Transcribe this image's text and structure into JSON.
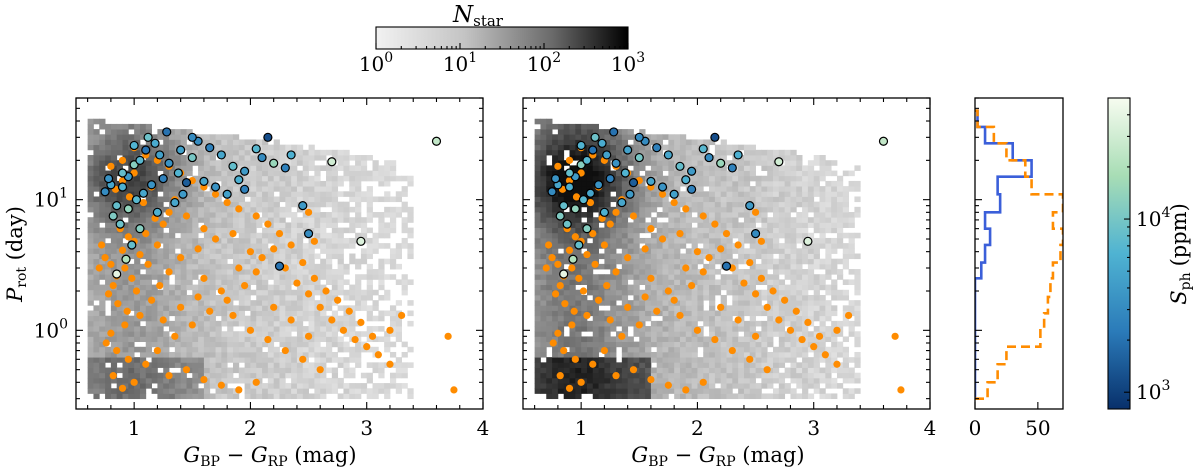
{
  "colorbar_top": {
    "label_main": "N",
    "label_sub": "star",
    "ticks": [
      {
        "base": "10",
        "exp": "0",
        "value": 1
      },
      {
        "base": "10",
        "exp": "1",
        "value": 10
      },
      {
        "base": "10",
        "exp": "2",
        "value": 100
      },
      {
        "base": "10",
        "exp": "3",
        "value": 1000
      }
    ],
    "scale": "log",
    "colormap": "white-to-black (gray)"
  },
  "colorbar_right": {
    "label_main": "S",
    "label_sub": "ph",
    "label_unit": "(ppm)",
    "ticks": [
      {
        "base": "10",
        "exp": "3",
        "value": 1000
      },
      {
        "base": "10",
        "exp": "4",
        "value": 10000
      }
    ],
    "range": [
      800,
      50000
    ],
    "scale": "log",
    "colormap": "dark blue to pale green (GnBu)"
  },
  "panel_left": {
    "xlabel_main": "G",
    "xlabel_sub1": "BP",
    "xlabel_minus": " − ",
    "xlabel_sub2": "RP",
    "xlabel_unit": " (mag)",
    "ylabel_main": "P",
    "ylabel_sub": "rot",
    "ylabel_unit": " (day)",
    "xticks": [
      "1",
      "2",
      "3",
      "4"
    ],
    "yticks": [
      {
        "base": "10",
        "exp": "0",
        "value": 1
      },
      {
        "base": "10",
        "exp": "1",
        "value": 10
      }
    ]
  },
  "panel_middle": {
    "xlabel_main": "G",
    "xlabel_sub1": "BP",
    "xlabel_minus": " − ",
    "xlabel_sub2": "RP",
    "xlabel_unit": " (mag)",
    "xticks": [
      "1",
      "2",
      "3",
      "4"
    ]
  },
  "panel_hist": {
    "xticks": [
      "0",
      "50"
    ]
  },
  "colors": {
    "orange": "#ff8c00",
    "blue_line": "#3b5fd9",
    "orange_line": "#ff8c00",
    "edge": "#000000"
  },
  "chart_data": [
    {
      "type": "scatter",
      "panel": "left",
      "xlabel": "G_BP − G_RP (mag)",
      "ylabel": "P_rot (day)",
      "xlim": [
        0.5,
        4.0
      ],
      "ylim": [
        0.25,
        60
      ],
      "yscale": "log",
      "background": "2D density histogram of N_star (gray, log color scale 1 to 1000)",
      "series": [
        {
          "points": [
            [
              0.8,
              3.2
            ],
            [
              0.85,
              2.6
            ],
            [
              0.9,
              4.1
            ],
            [
              0.75,
              3.6
            ],
            [
              0.95,
              5.2
            ],
            [
              1.0,
              4.8
            ],
            [
              0.88,
              6.0
            ],
            [
              0.82,
              2.2
            ],
            [
              0.78,
              1.9
            ],
            [
              0.92,
              3.0
            ],
            [
              1.05,
              3.8
            ],
            [
              1.1,
              5.5
            ],
            [
              0.98,
              2.5
            ],
            [
              0.86,
              1.6
            ],
            [
              0.94,
              1.4
            ],
            [
              1.02,
              2.0
            ],
            [
              1.12,
              3.2
            ],
            [
              1.2,
              4.5
            ],
            [
              1.25,
              6.5
            ],
            [
              1.3,
              8.0
            ],
            [
              1.18,
              7.2
            ],
            [
              1.08,
              9.5
            ],
            [
              0.96,
              10.5
            ],
            [
              0.84,
              12.0
            ],
            [
              0.9,
              14.0
            ],
            [
              1.0,
              16.0
            ],
            [
              1.15,
              12.5
            ],
            [
              1.35,
              10.0
            ],
            [
              1.45,
              7.5
            ],
            [
              1.6,
              6.0
            ],
            [
              1.7,
              5.0
            ],
            [
              1.55,
              4.2
            ],
            [
              1.4,
              3.6
            ],
            [
              1.3,
              2.8
            ],
            [
              1.22,
              2.2
            ],
            [
              1.05,
              1.3
            ],
            [
              0.92,
              1.1
            ],
            [
              0.8,
              0.95
            ],
            [
              0.76,
              0.8
            ],
            [
              0.85,
              0.7
            ],
            [
              0.95,
              0.6
            ],
            [
              0.82,
              0.45
            ],
            [
              0.9,
              0.36
            ],
            [
              1.0,
              0.4
            ],
            [
              1.1,
              0.55
            ],
            [
              1.2,
              0.7
            ],
            [
              1.35,
              0.9
            ],
            [
              1.5,
              1.1
            ],
            [
              1.65,
              1.4
            ],
            [
              1.8,
              1.7
            ],
            [
              1.95,
              2.2
            ],
            [
              2.05,
              2.8
            ],
            [
              2.1,
              3.6
            ],
            [
              2.2,
              4.2
            ],
            [
              2.3,
              3.0
            ],
            [
              2.4,
              2.3
            ],
            [
              2.5,
              1.9
            ],
            [
              2.6,
              1.5
            ],
            [
              2.7,
              1.2
            ],
            [
              2.8,
              1.0
            ],
            [
              2.9,
              0.85
            ],
            [
              3.0,
              0.75
            ],
            [
              3.1,
              0.65
            ],
            [
              3.2,
              0.55
            ],
            [
              3.3,
              1.3
            ],
            [
              3.2,
              1.0
            ],
            [
              3.05,
              0.9
            ],
            [
              2.95,
              1.15
            ],
            [
              2.85,
              1.4
            ],
            [
              2.75,
              1.7
            ],
            [
              2.65,
              2.0
            ],
            [
              2.55,
              2.5
            ],
            [
              2.45,
              3.3
            ],
            [
              2.35,
              4.5
            ],
            [
              2.25,
              5.5
            ],
            [
              2.15,
              6.5
            ],
            [
              2.05,
              7.5
            ],
            [
              1.9,
              8.5
            ],
            [
              1.8,
              9.5
            ],
            [
              1.7,
              11.0
            ],
            [
              1.6,
              12.5
            ],
            [
              1.5,
              14.0
            ],
            [
              1.4,
              16.0
            ],
            [
              1.3,
              18.0
            ],
            [
              1.2,
              20.0
            ],
            [
              1.1,
              22.0
            ],
            [
              1.0,
              25.0
            ],
            [
              0.9,
              20.0
            ],
            [
              0.8,
              18.0
            ],
            [
              1.6,
              2.5
            ],
            [
              1.75,
              2.0
            ],
            [
              1.85,
              1.3
            ],
            [
              2.0,
              1.0
            ],
            [
              2.15,
              0.85
            ],
            [
              2.3,
              0.7
            ],
            [
              2.45,
              0.6
            ],
            [
              2.6,
              0.5
            ],
            [
              1.45,
              0.5
            ],
            [
              1.3,
              0.45
            ],
            [
              1.6,
              0.42
            ],
            [
              1.75,
              0.38
            ],
            [
              1.9,
              0.35
            ],
            [
              2.05,
              0.4
            ],
            [
              2.5,
              0.9
            ],
            [
              2.35,
              1.2
            ],
            [
              2.2,
              1.5
            ],
            [
              3.7,
              0.9
            ],
            [
              3.75,
              0.35
            ],
            [
              2.5,
              8.0
            ],
            [
              2.55,
              4.8
            ],
            [
              2.0,
              4.0
            ],
            [
              1.9,
              3.0
            ],
            [
              1.85,
              5.5
            ],
            [
              0.72,
              4.5
            ],
            [
              0.7,
              3.0
            ],
            [
              1.15,
              1.7
            ],
            [
              1.25,
              1.2
            ],
            [
              1.4,
              1.5
            ],
            [
              1.55,
              1.8
            ]
          ],
          "marker": "filled circle",
          "color": "orange"
        },
        {
          "points": [
            [
              0.75,
              11.5
            ],
            [
              0.8,
              13.0
            ],
            [
              0.85,
              9.0
            ],
            [
              0.9,
              12.5
            ],
            [
              0.95,
              15.0
            ],
            [
              1.0,
              18.5
            ],
            [
              1.05,
              20.0
            ],
            [
              1.1,
              24.0
            ],
            [
              1.12,
              30.0
            ],
            [
              1.18,
              27.0
            ],
            [
              1.22,
              22.0
            ],
            [
              1.3,
              19.0
            ],
            [
              1.38,
              16.0
            ],
            [
              1.45,
              13.5
            ],
            [
              1.5,
              21.0
            ],
            [
              1.55,
              28.0
            ],
            [
              1.65,
              25.0
            ],
            [
              1.75,
              22.0
            ],
            [
              1.85,
              18.0
            ],
            [
              1.95,
              16.5
            ],
            [
              2.05,
              24.5
            ],
            [
              2.1,
              21.0
            ],
            [
              2.15,
              30.0
            ],
            [
              2.2,
              19.0
            ],
            [
              2.3,
              17.5
            ],
            [
              2.35,
              22.0
            ],
            [
              1.6,
              13.8
            ],
            [
              1.7,
              12.5
            ],
            [
              1.8,
              11.0
            ],
            [
              1.9,
              14.2
            ],
            [
              0.82,
              7.5
            ],
            [
              0.88,
              6.5
            ],
            [
              0.95,
              8.5
            ],
            [
              1.02,
              10.0
            ],
            [
              1.08,
              11.2
            ],
            [
              1.15,
              13.0
            ],
            [
              1.25,
              14.5
            ],
            [
              0.93,
              3.5
            ],
            [
              0.85,
              2.7
            ],
            [
              0.98,
              4.5
            ],
            [
              2.45,
              9.0
            ],
            [
              2.5,
              5.5
            ],
            [
              2.7,
              19.5
            ],
            [
              2.95,
              4.8
            ],
            [
              3.6,
              28.0
            ],
            [
              1.95,
              12.0
            ],
            [
              2.25,
              3.1
            ],
            [
              1.2,
              8.0
            ],
            [
              1.35,
              9.5
            ],
            [
              1.42,
              11.0
            ],
            [
              1.05,
              6.0
            ],
            [
              0.9,
              16.0
            ],
            [
              0.78,
              14.5
            ],
            [
              1.0,
              26.0
            ],
            [
              1.28,
              33.0
            ],
            [
              1.4,
              24.0
            ],
            [
              1.5,
              30.0
            ]
          ],
          "marker": "circle with black edge",
          "color": "mapped by S_ph (ppm)",
          "S_ph": [
            3000,
            5000,
            8000,
            6000,
            4000,
            12000,
            7000,
            2000,
            9000,
            5500,
            4500,
            3500,
            6500,
            1500,
            10000,
            3000,
            2500,
            5000,
            8000,
            4000,
            7000,
            3000,
            1200,
            15000,
            2500,
            6000,
            5000,
            3500,
            4500,
            6000,
            11000,
            9000,
            14000,
            7000,
            5000,
            3500,
            2500,
            20000,
            40000,
            8000,
            4000,
            3000,
            30000,
            35000,
            25000,
            2500,
            2000,
            6000,
            5000,
            4000,
            12000,
            8000,
            3500,
            6500,
            2000,
            4500,
            3000
          ]
        }
      ]
    },
    {
      "type": "scatter",
      "panel": "middle",
      "xlabel": "G_BP − G_RP (mag)",
      "ylabel": "",
      "xlim": [
        0.5,
        4.0
      ],
      "ylim": [
        0.25,
        60
      ],
      "yscale": "log",
      "background": "2D density histogram of N_star (gray, log color scale 1 to 1000), denser than left panel",
      "series_note": "same orange and S_ph-colored points as left panel"
    },
    {
      "type": "histogram",
      "panel": "right",
      "orientation": "horizontal (counts along x, P_rot along y)",
      "xlim": [
        0,
        70
      ],
      "ylim": [
        0.25,
        60
      ],
      "yscale": "log",
      "bin_edges": [
        0.3,
        0.4,
        0.55,
        0.75,
        1.0,
        1.35,
        1.8,
        2.5,
        3.3,
        4.5,
        6.0,
        8.0,
        11.0,
        15.0,
        20.0,
        27.0,
        36.0,
        48.0
      ],
      "series": [
        {
          "name": "",
          "color": "blue",
          "linestyle": "solid",
          "counts": [
            0,
            0,
            0,
            0,
            0,
            0,
            0,
            5,
            8,
            12,
            8,
            20,
            18,
            45,
            30,
            8,
            2
          ]
        },
        {
          "name": "",
          "color": "orange",
          "linestyle": "dashed",
          "counts": [
            10,
            18,
            25,
            52,
            55,
            58,
            60,
            62,
            68,
            70,
            62,
            70,
            45,
            40,
            25,
            15,
            2
          ]
        }
      ]
    }
  ]
}
